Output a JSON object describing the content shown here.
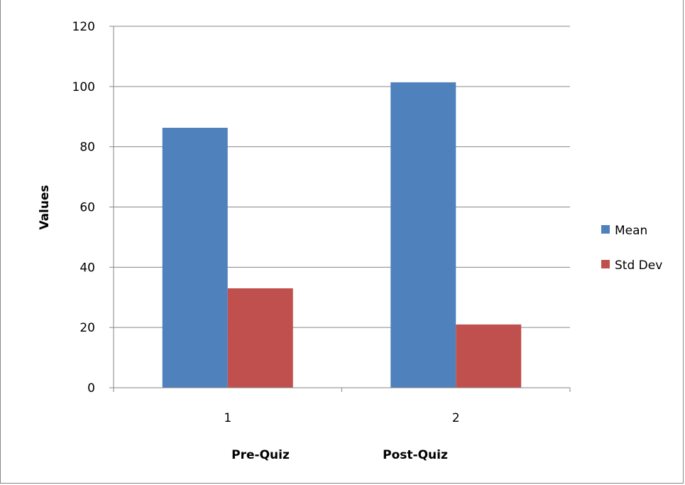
{
  "chart_data": {
    "type": "bar",
    "categories": [
      "1",
      "2"
    ],
    "category_captions": [
      "Pre-Quiz",
      "Post-Quiz"
    ],
    "series": [
      {
        "name": "Mean",
        "values": [
          86.3,
          101.4
        ],
        "color": "#4F81BD"
      },
      {
        "name": "Std Dev",
        "values": [
          33,
          21
        ],
        "color": "#C0504D"
      }
    ],
    "title": "",
    "xlabel": "",
    "ylabel": "Values",
    "ylim": [
      0,
      120
    ],
    "yticks": [
      "0",
      "20",
      "40",
      "60",
      "80",
      "100",
      "120"
    ],
    "grid": true,
    "legend_position": "right"
  }
}
